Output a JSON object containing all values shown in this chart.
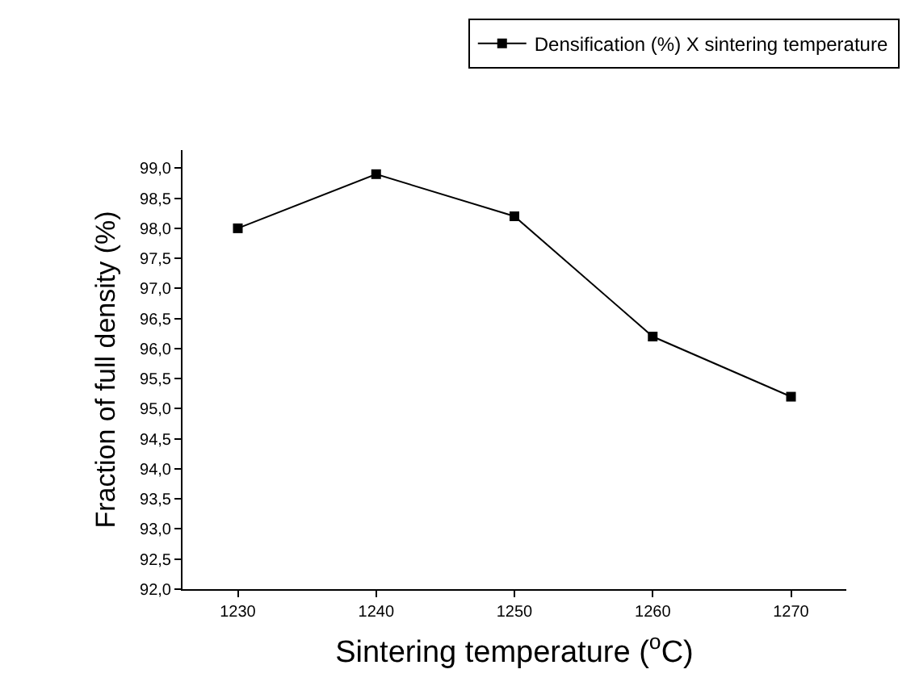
{
  "chart_data": {
    "type": "line",
    "xlabel": "Sintering temperature ($^{o}$C)",
    "ylabel": "Fraction of full density (%)",
    "x": [
      1230,
      1240,
      1250,
      1260,
      1270
    ],
    "series": [
      {
        "name": "Densification (%) X sintering temperature",
        "color": "#000000",
        "values": [
          98.0,
          98.9,
          98.2,
          96.2,
          95.2
        ]
      }
    ],
    "xlim": [
      1226,
      1274
    ],
    "xticks": [
      1230,
      1240,
      1250,
      1260,
      1270
    ],
    "ylim": [
      92.0,
      99.3
    ],
    "yticks": [
      {
        "value": 92.0,
        "label": "92,0"
      },
      {
        "value": 92.5,
        "label": "92,5"
      },
      {
        "value": 93.0,
        "label": "93,0"
      },
      {
        "value": 93.5,
        "label": "93,5"
      },
      {
        "value": 94.0,
        "label": "94,0"
      },
      {
        "value": 94.5,
        "label": "94,5"
      },
      {
        "value": 95.0,
        "label": "95,0"
      },
      {
        "value": 95.5,
        "label": "95,5"
      },
      {
        "value": 96.0,
        "label": "96,0"
      },
      {
        "value": 96.5,
        "label": "96,5"
      },
      {
        "value": 97.0,
        "label": "97,0"
      },
      {
        "value": 97.5,
        "label": "97,5"
      },
      {
        "value": 98.0,
        "label": "98,0"
      },
      {
        "value": 98.5,
        "label": "98,5"
      },
      {
        "value": 99.0,
        "label": "99,0"
      }
    ],
    "marker": "square",
    "line_style": "solid",
    "legend": "top right"
  }
}
